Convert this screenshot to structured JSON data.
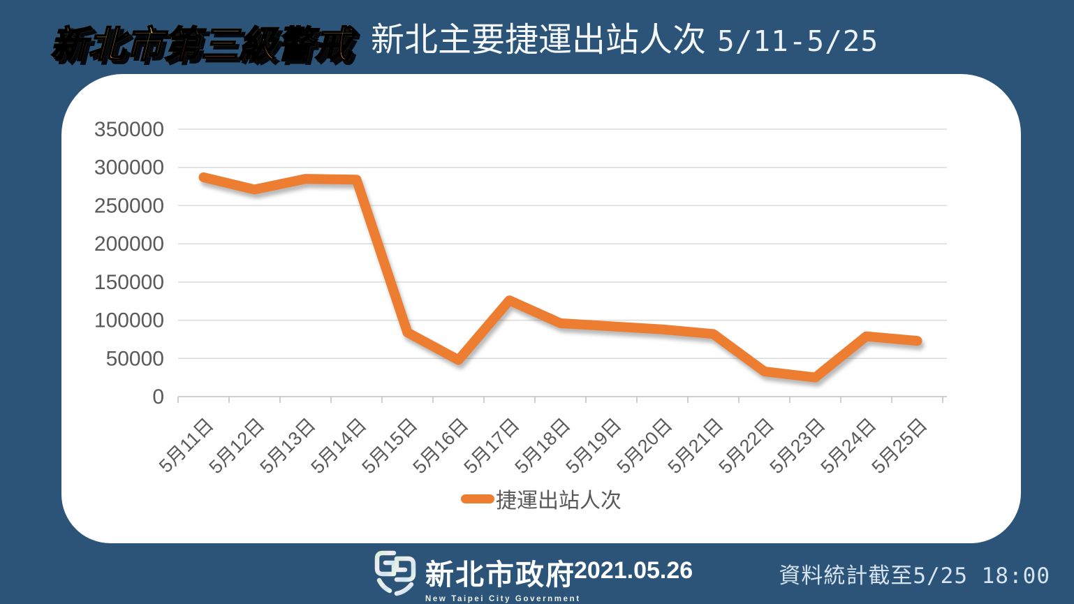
{
  "header": {
    "alert_badge": "新北市第三級警戒",
    "title": "新北主要捷運出站人次",
    "date_range": "5/11-5/25"
  },
  "chart_data": {
    "type": "line",
    "title": "新北主要捷運出站人次 5/11-5/25",
    "categories": [
      "5月11日",
      "5月12日",
      "5月13日",
      "5月14日",
      "5月15日",
      "5月16日",
      "5月17日",
      "5月18日",
      "5月19日",
      "5月20日",
      "5月21日",
      "5月22日",
      "5月23日",
      "5月24日",
      "5月25日"
    ],
    "series": [
      {
        "name": "捷運出站人次",
        "values": [
          287000,
          271000,
          285000,
          284000,
          84000,
          48000,
          126000,
          96000,
          92000,
          88000,
          82000,
          33000,
          25000,
          79000,
          73000
        ]
      }
    ],
    "xlabel": "",
    "ylabel": "",
    "ylim": [
      0,
      350000
    ],
    "ytick_step": 50000,
    "grid": true,
    "legend_position": "bottom",
    "line_color": "#ED7D31"
  },
  "footer": {
    "org_name_zh": "新北市政府",
    "org_name_en": "New Taipei City Government",
    "publish_date": "2021.05.26",
    "note": "資料統計截至5/25 18:00"
  },
  "colors": {
    "background": "#2B5478",
    "card": "#FFFFFF",
    "series_line": "#ED7D31",
    "gridline": "#DADADA",
    "axis_line": "#BFBFBF",
    "axis_text": "#595959",
    "badge_gradient_top": "#FFF468",
    "badge_gradient_bottom": "#E8430C"
  }
}
